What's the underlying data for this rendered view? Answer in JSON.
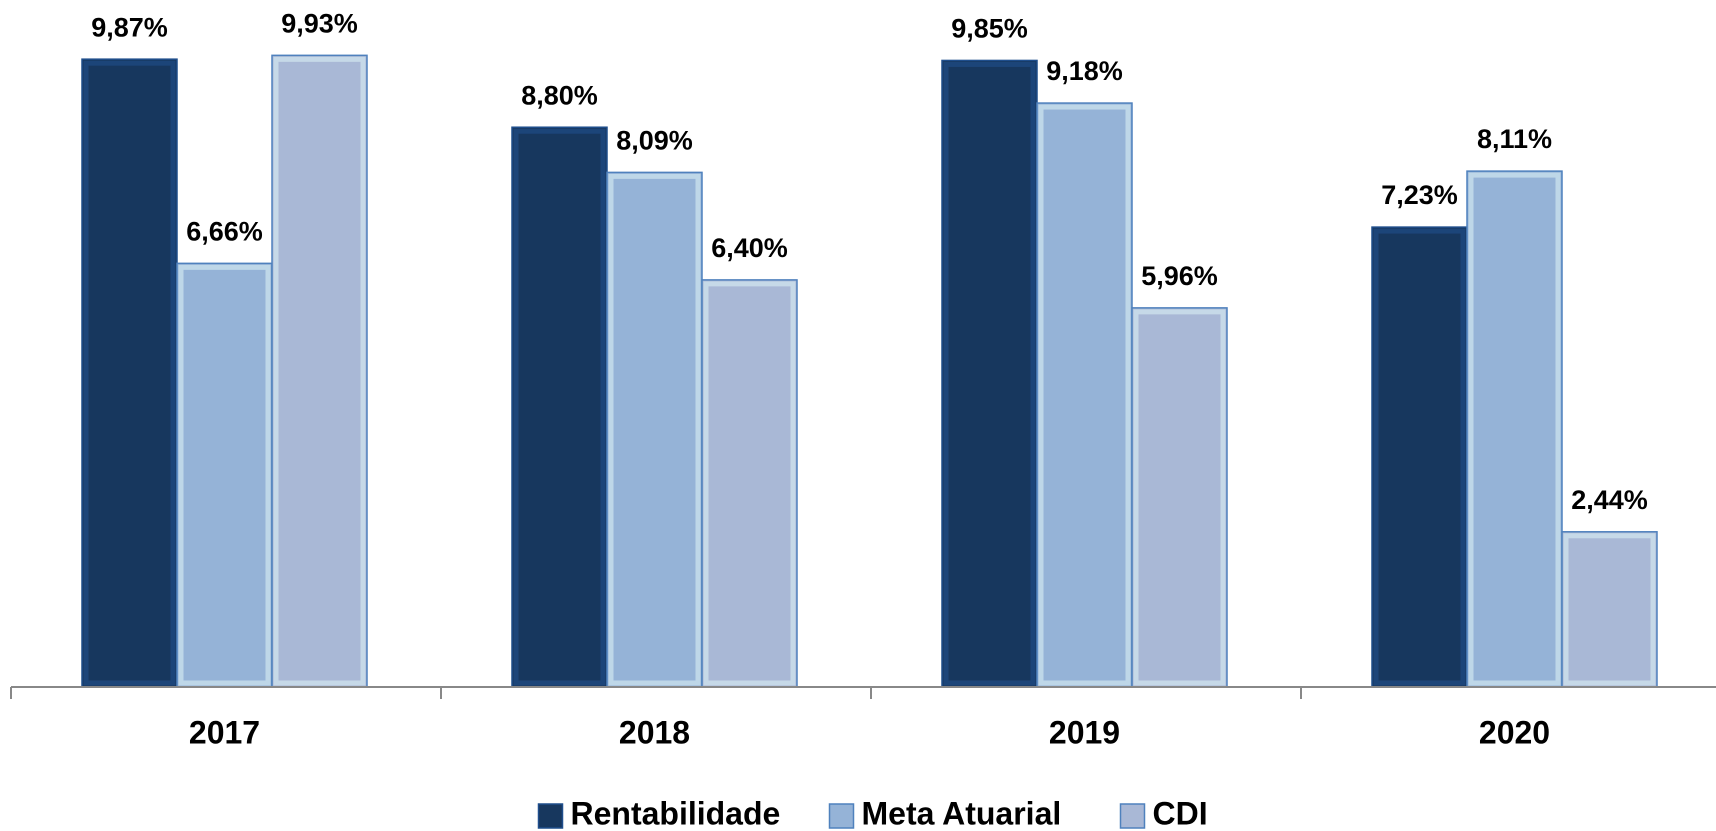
{
  "chart_data": {
    "type": "bar",
    "categories": [
      "2017",
      "2018",
      "2019",
      "2020"
    ],
    "series": [
      {
        "name": "Rentabilidade",
        "color": "#17375e",
        "values": [
          9.87,
          8.8,
          9.85,
          7.23
        ],
        "value_labels": [
          "9,87%",
          "8,80%",
          "9,85%",
          "7,23%"
        ]
      },
      {
        "name": "Meta Atuarial",
        "color": "#95b3d7",
        "values": [
          6.66,
          8.09,
          9.18,
          8.11
        ],
        "value_labels": [
          "6,66%",
          "8,09%",
          "9,18%",
          "8,11%"
        ]
      },
      {
        "name": "CDI",
        "color": "#a9b8d6",
        "values": [
          9.93,
          6.4,
          5.96,
          2.44
        ],
        "value_labels": [
          "9,93%",
          "6,40%",
          "5,96%",
          "2,44%"
        ]
      }
    ],
    "ylim": [
      0,
      10.8
    ],
    "legend": "bottom"
  }
}
